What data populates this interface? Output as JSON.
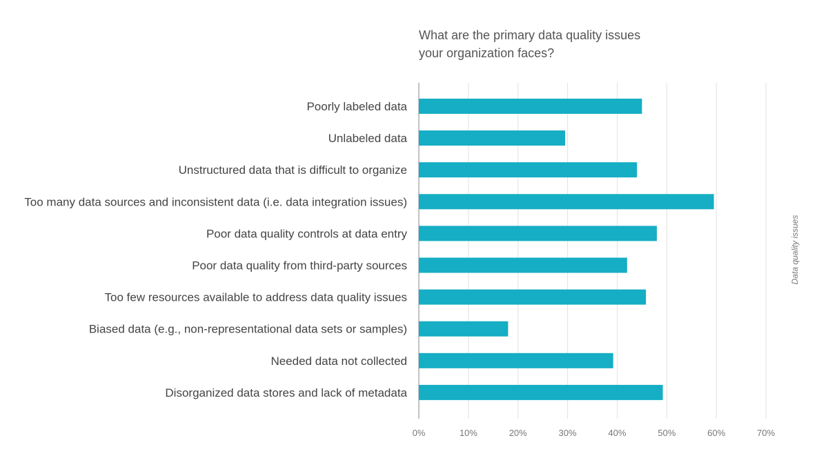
{
  "chart_data": {
    "type": "bar",
    "orientation": "horizontal",
    "title_lines": [
      "What are the primary data quality issues",
      "your organization faces?"
    ],
    "categories": [
      "Poorly labeled data",
      "Unlabeled data",
      "Unstructured data that is difficult to organize",
      "Too many data sources and inconsistent data (i.e. data integration issues)",
      "Poor data quality controls at data entry",
      "Poor data quality from third-party sources",
      "Too few resources available to address data quality issues",
      "Biased data (e.g., non-representational data sets or samples)",
      "Needed data not collected",
      "Disorganized data stores and lack of metadata"
    ],
    "values": [
      45,
      29.5,
      44,
      59.5,
      48,
      42,
      45.8,
      18,
      39.2,
      49.2
    ],
    "xlim": [
      0,
      70
    ],
    "xticks": [
      0,
      10,
      20,
      30,
      40,
      50,
      60,
      70
    ],
    "xtick_labels": [
      "0%",
      "10%",
      "20%",
      "30%",
      "40%",
      "50%",
      "60%",
      "70%"
    ],
    "side_label": "Data quality issues",
    "grid": "vertical",
    "bar_color": "#15aec4",
    "axis_color": "#9a9a9a",
    "grid_color": "#e2e2e2",
    "label_color": "#444444",
    "tick_color": "#777777"
  }
}
